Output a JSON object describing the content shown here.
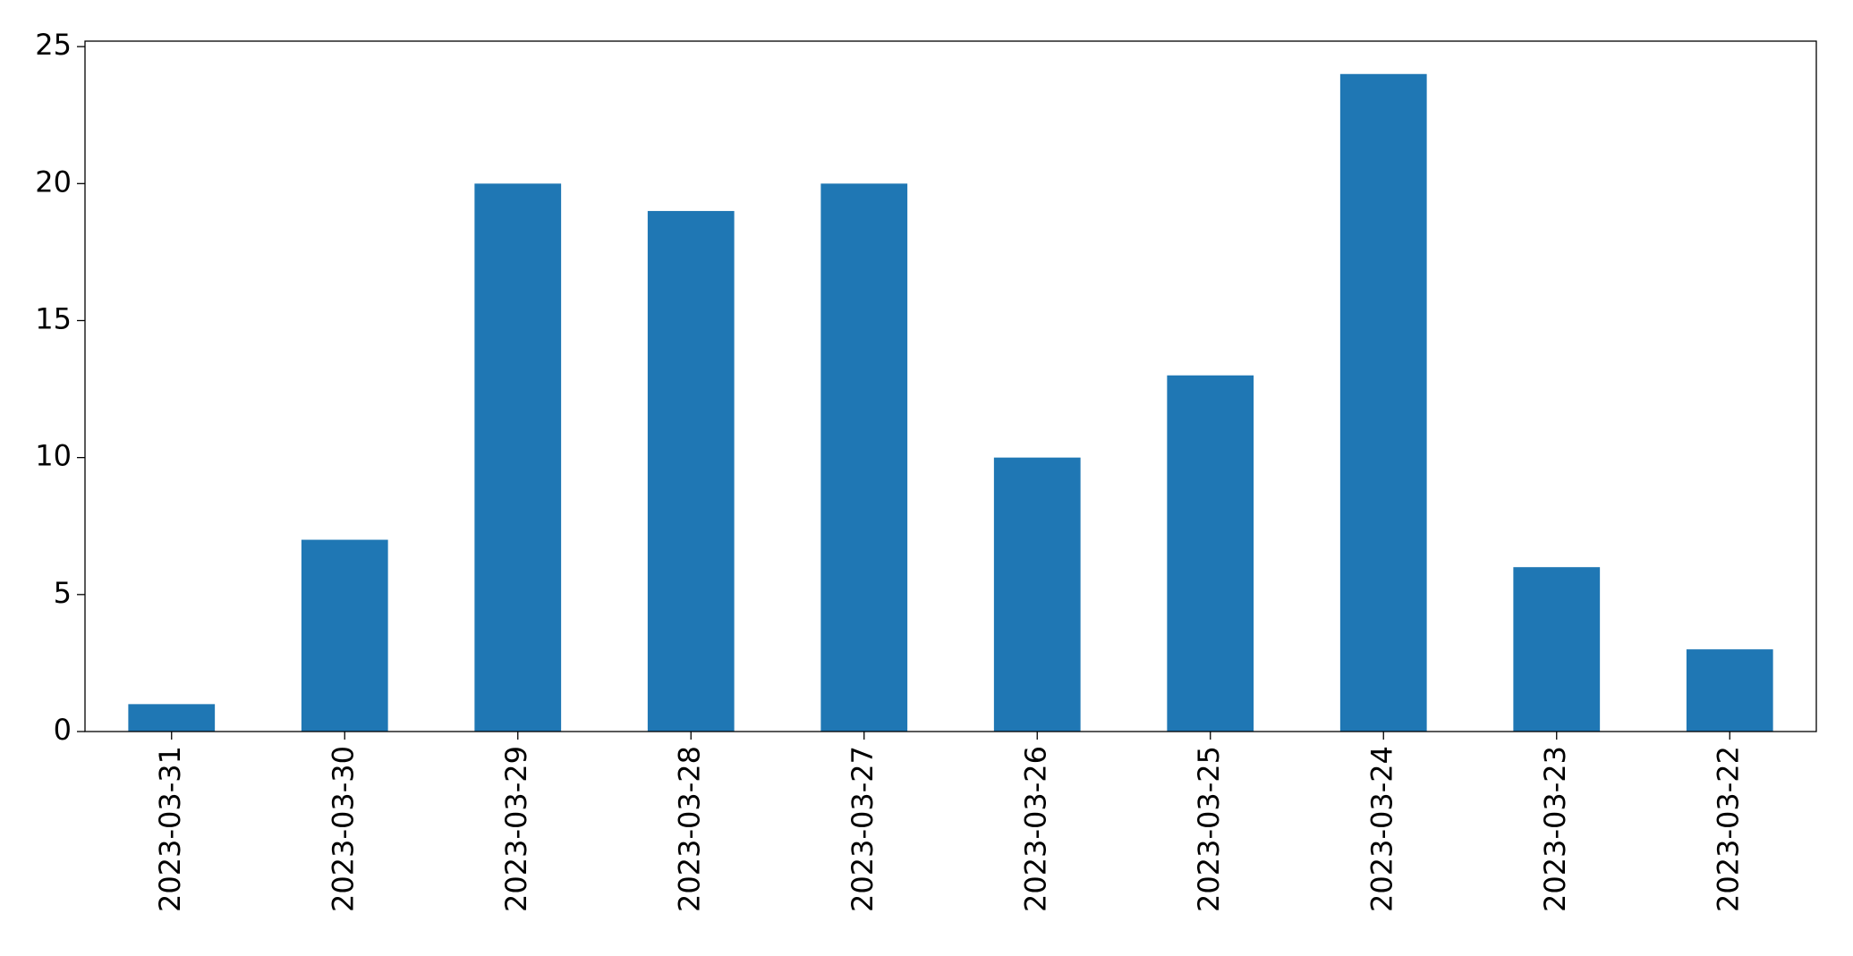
{
  "chart_data": {
    "type": "bar",
    "categories": [
      "2023-03-31",
      "2023-03-30",
      "2023-03-29",
      "2023-03-28",
      "2023-03-27",
      "2023-03-26",
      "2023-03-25",
      "2023-03-24",
      "2023-03-23",
      "2023-03-22"
    ],
    "values": [
      1,
      7,
      20,
      19,
      20,
      10,
      13,
      24,
      6,
      3
    ],
    "color": "#1f77b4",
    "ylim": [
      0,
      25.2
    ],
    "yticks": [
      0,
      5,
      10,
      15,
      20,
      25
    ],
    "grid": false
  }
}
